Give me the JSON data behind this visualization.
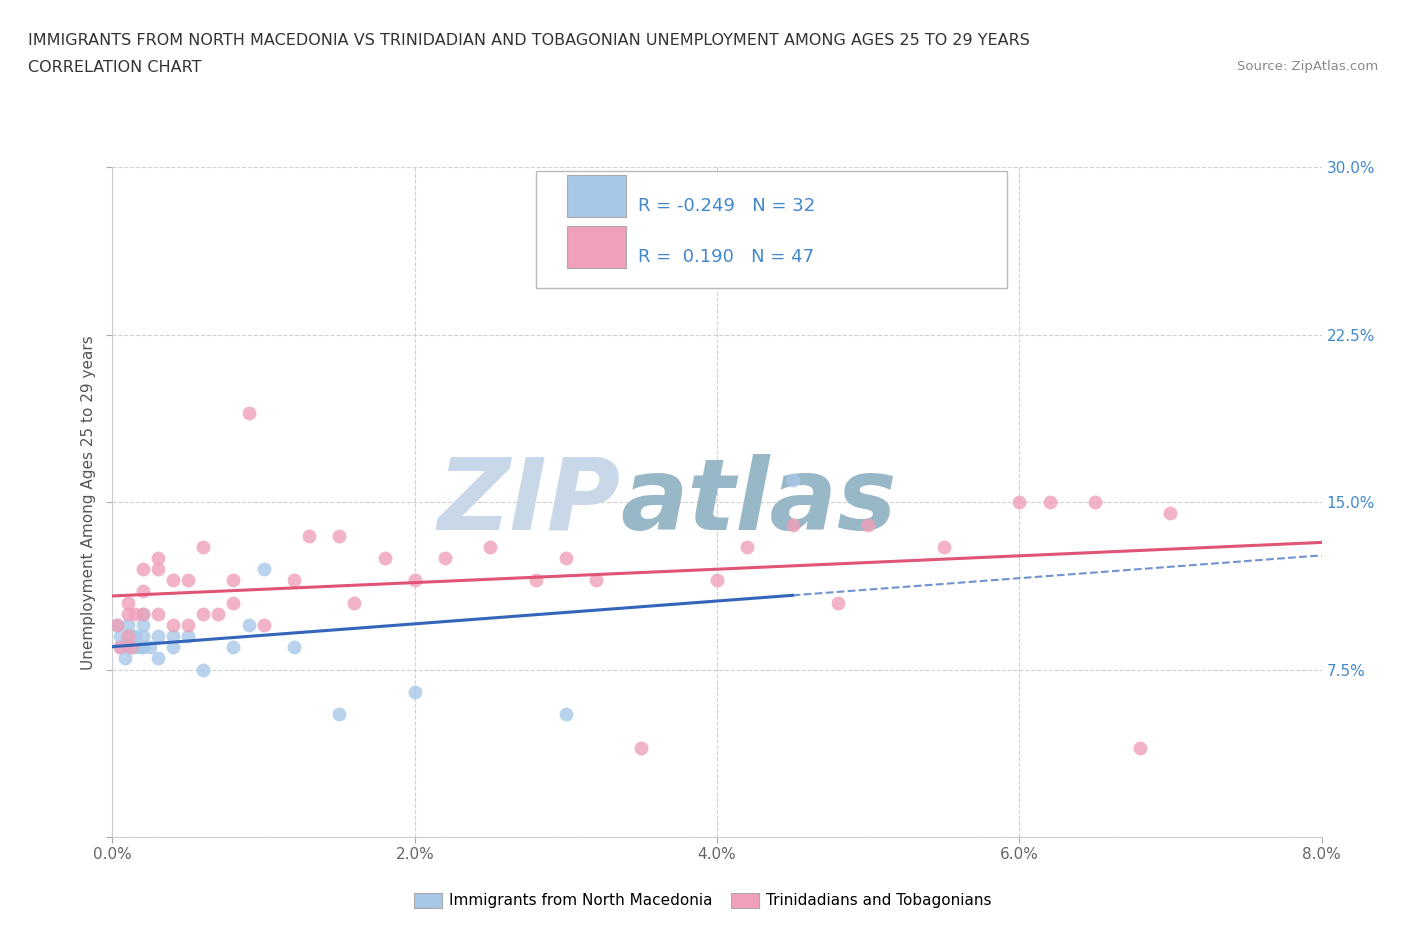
{
  "title_line1": "IMMIGRANTS FROM NORTH MACEDONIA VS TRINIDADIAN AND TOBAGONIAN UNEMPLOYMENT AMONG AGES 25 TO 29 YEARS",
  "title_line2": "CORRELATION CHART",
  "source": "Source: ZipAtlas.com",
  "ylabel": "Unemployment Among Ages 25 to 29 years",
  "legend_label1": "Immigrants from North Macedonia",
  "legend_label2": "Trinidadians and Tobagonians",
  "R1": -0.249,
  "N1": 32,
  "R2": 0.19,
  "N2": 47,
  "color1": "#a8c8e8",
  "color2": "#f0a0b8",
  "line_color1": "#3366bb",
  "line_color2": "#e05575",
  "xlim": [
    0.0,
    0.08
  ],
  "ylim": [
    0.0,
    0.3
  ],
  "xticks": [
    0.0,
    0.02,
    0.04,
    0.06,
    0.08
  ],
  "yticks": [
    0.0,
    0.075,
    0.15,
    0.225,
    0.3
  ],
  "xtick_labels": [
    "0.0%",
    "2.0%",
    "4.0%",
    "6.0%",
    "8.0%"
  ],
  "ytick_labels_right": [
    "",
    "7.5%",
    "15.0%",
    "22.5%",
    "30.0%"
  ],
  "blue_x": [
    0.0003,
    0.0005,
    0.0005,
    0.0008,
    0.001,
    0.001,
    0.001,
    0.001,
    0.0012,
    0.0012,
    0.0015,
    0.0015,
    0.0018,
    0.002,
    0.002,
    0.002,
    0.002,
    0.0025,
    0.003,
    0.003,
    0.004,
    0.004,
    0.005,
    0.006,
    0.008,
    0.009,
    0.01,
    0.012,
    0.015,
    0.02,
    0.03,
    0.045
  ],
  "blue_y": [
    0.095,
    0.085,
    0.09,
    0.08,
    0.085,
    0.09,
    0.09,
    0.095,
    0.085,
    0.09,
    0.085,
    0.09,
    0.085,
    0.085,
    0.09,
    0.095,
    0.1,
    0.085,
    0.08,
    0.09,
    0.085,
    0.09,
    0.09,
    0.075,
    0.085,
    0.095,
    0.12,
    0.085,
    0.055,
    0.065,
    0.055,
    0.16
  ],
  "pink_x": [
    0.0003,
    0.0005,
    0.001,
    0.001,
    0.001,
    0.0012,
    0.0015,
    0.002,
    0.002,
    0.002,
    0.003,
    0.003,
    0.003,
    0.004,
    0.004,
    0.005,
    0.005,
    0.006,
    0.006,
    0.007,
    0.008,
    0.008,
    0.009,
    0.01,
    0.012,
    0.013,
    0.015,
    0.016,
    0.018,
    0.02,
    0.022,
    0.025,
    0.028,
    0.03,
    0.032,
    0.035,
    0.04,
    0.042,
    0.045,
    0.048,
    0.05,
    0.055,
    0.06,
    0.062,
    0.065,
    0.068,
    0.07
  ],
  "pink_y": [
    0.095,
    0.085,
    0.09,
    0.1,
    0.105,
    0.085,
    0.1,
    0.1,
    0.11,
    0.12,
    0.1,
    0.12,
    0.125,
    0.095,
    0.115,
    0.095,
    0.115,
    0.1,
    0.13,
    0.1,
    0.105,
    0.115,
    0.19,
    0.095,
    0.115,
    0.135,
    0.135,
    0.105,
    0.125,
    0.115,
    0.125,
    0.13,
    0.115,
    0.125,
    0.115,
    0.04,
    0.115,
    0.13,
    0.14,
    0.105,
    0.14,
    0.13,
    0.15,
    0.15,
    0.15,
    0.04,
    0.145
  ],
  "watermark_top": "ZIP",
  "watermark_bottom": "atlas",
  "watermark_color_top": "#c8d8e8",
  "watermark_color_bottom": "#98b8c8",
  "background_color": "#ffffff",
  "grid_color": "#cccccc",
  "title_color": "#333333",
  "tick_label_color": "#4488cc"
}
